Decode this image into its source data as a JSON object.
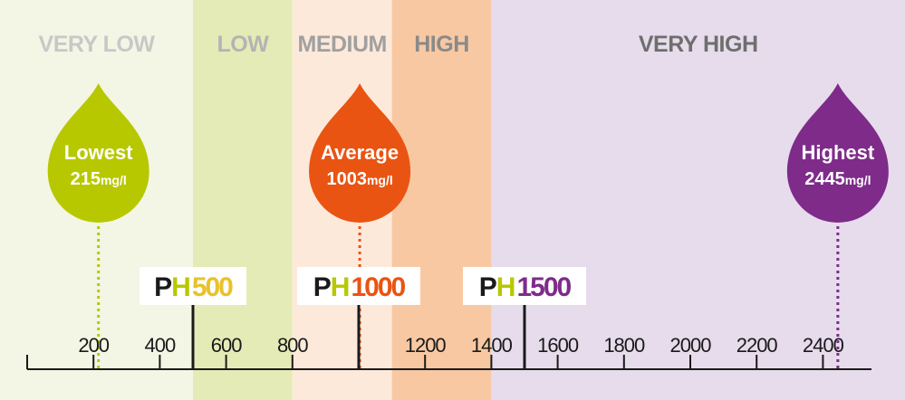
{
  "scale": {
    "min": 0,
    "max": 2550,
    "ticks": [
      200,
      400,
      600,
      800,
      1200,
      1400,
      1600,
      1800,
      2000,
      2200,
      2400
    ]
  },
  "bands": [
    {
      "label": "VERY LOW",
      "from": 0,
      "to": 500,
      "color": "#f3f6e4",
      "label_color": "#c8c8c8"
    },
    {
      "label": "LOW",
      "from": 500,
      "to": 800,
      "color": "#e4ebb6",
      "label_color": "#b4b4b4"
    },
    {
      "label": "MEDIUM",
      "from": 800,
      "to": 1100,
      "color": "#fde9da",
      "label_color": "#a0a0a0"
    },
    {
      "label": "HIGH",
      "from": 1100,
      "to": 1400,
      "color": "#f8c8a3",
      "label_color": "#8a8a8a"
    },
    {
      "label": "VERY HIGH",
      "from": 1400,
      "to": 2550,
      "color": "#e6dcec",
      "label_color": "#6e6e6e"
    }
  ],
  "markers": [
    {
      "title": "Lowest",
      "value": "215",
      "unit": "mg/l",
      "at": 215,
      "color": "#b7c800"
    },
    {
      "title": "Average",
      "value": "1003",
      "unit": "mg/l",
      "at": 1003,
      "color": "#e95412"
    },
    {
      "title": "Highest",
      "value": "2445",
      "unit": "mg/l",
      "at": 2445,
      "color": "#7e2b8a"
    }
  ],
  "references": [
    {
      "prefix_p": "P",
      "prefix_h": "H",
      "number": "500",
      "at": 500,
      "number_color": "#e8c229"
    },
    {
      "prefix_p": "P",
      "prefix_h": "H",
      "number": "1000",
      "at": 1000,
      "number_color": "#e95412"
    },
    {
      "prefix_p": "P",
      "prefix_h": "H",
      "number": "1500",
      "at": 1500,
      "number_color": "#7e2b8a"
    }
  ],
  "colors": {
    "axis": "#1a1a1a",
    "prefix_p": "#1a1a1a",
    "prefix_h": "#b7c800"
  }
}
